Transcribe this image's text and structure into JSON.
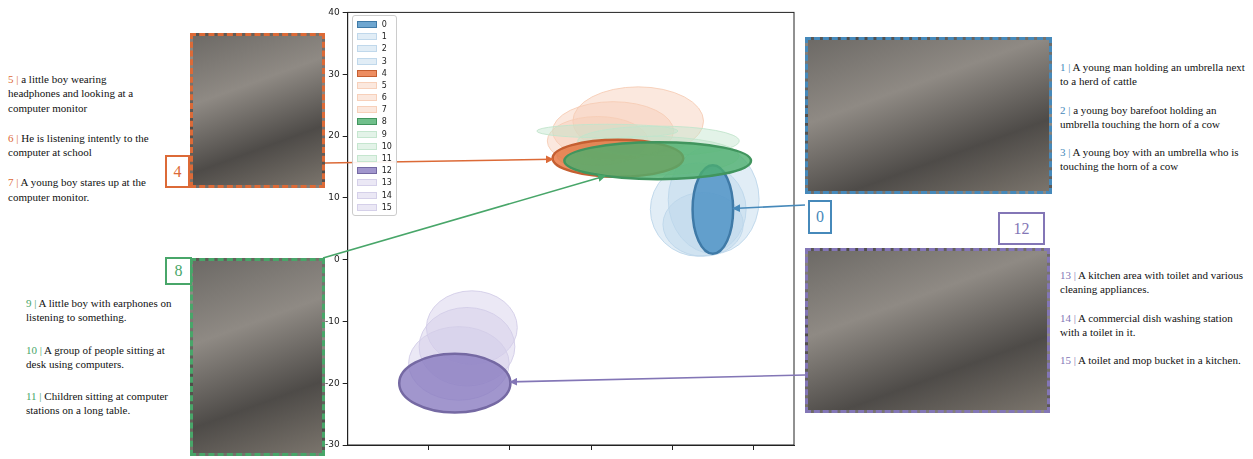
{
  "chart_data": {
    "type": "ellipse",
    "xlim": [
      -30,
      25
    ],
    "xticks": [
      -20,
      -10,
      0,
      10,
      20
    ],
    "ylim": [
      -30,
      40
    ],
    "yticks": [
      -30,
      -20,
      -10,
      0,
      10,
      20,
      30,
      40
    ],
    "tick_labels": "y",
    "grid": false,
    "legend": "upper left",
    "series": [
      {
        "name": "0",
        "color": "#4a90c4",
        "center": [
          15.0,
          8.1
        ],
        "width": 5.0,
        "height": 14.3
      },
      {
        "name": "1",
        "color": "#bcd6ea",
        "center": [
          13.2,
          8.1
        ],
        "width": 11.8,
        "height": 15.1
      },
      {
        "name": "2",
        "color": "#bcd6ea",
        "center": [
          15.1,
          9.7
        ],
        "width": 11.2,
        "height": 17.5
      },
      {
        "name": "3",
        "color": "#bcd6ea",
        "center": [
          13.8,
          5.7
        ],
        "width": 9.9,
        "height": 10.3
      },
      {
        "name": "4",
        "color": "#e8703a",
        "center": [
          3.3,
          16.4
        ],
        "width": 16.1,
        "height": 6.0
      },
      {
        "name": "5",
        "color": "#f6cdb6",
        "center": [
          2.7,
          20.8
        ],
        "width": 14.9,
        "height": 9.5
      },
      {
        "name": "6",
        "color": "#f6cdb6",
        "center": [
          5.8,
          22.4
        ],
        "width": 16.1,
        "height": 11.1
      },
      {
        "name": "7",
        "color": "#f6cdb6",
        "center": [
          0.8,
          19.2
        ],
        "width": 12.4,
        "height": 7.9
      },
      {
        "name": "8",
        "color": "#4caf6e",
        "center": [
          8.2,
          16.0
        ],
        "width": 23.0,
        "height": 6.0
      },
      {
        "name": "9",
        "color": "#c2e4cc",
        "center": [
          2.0,
          20.8
        ],
        "width": 17.4,
        "height": 2.2
      },
      {
        "name": "10",
        "color": "#c2e4cc",
        "center": [
          8.3,
          19.2
        ],
        "width": 19.9,
        "height": 4.8
      },
      {
        "name": "11",
        "color": "#c2e4cc",
        "center": [
          7.0,
          16.8
        ],
        "width": 22.4,
        "height": 6.3
      },
      {
        "name": "12",
        "color": "#8a7cc0",
        "center": [
          -16.8,
          -20.0
        ],
        "width": 13.7,
        "height": 9.5
      },
      {
        "name": "13",
        "color": "#d3cde8",
        "center": [
          -14.7,
          -11.0
        ],
        "width": 11.2,
        "height": 11.9
      },
      {
        "name": "14",
        "color": "#d3cde8",
        "center": [
          -15.3,
          -14.1
        ],
        "width": 11.8,
        "height": 12.7
      },
      {
        "name": "15",
        "color": "#d3cde8",
        "center": [
          -16.3,
          -16.8
        ],
        "width": 12.4,
        "height": 11.9
      }
    ]
  },
  "caption_separator": "|",
  "panels": [
    {
      "label": 4,
      "target": "4",
      "captions": [
        {
          "number": 5,
          "text": "a little boy wearing headphones and looking at a computer monitor"
        },
        {
          "number": 6,
          "text": "He is listening intently to the computer at school"
        },
        {
          "number": 7,
          "text": "A young boy stares up at the computer monitor."
        }
      ]
    },
    {
      "label": 8,
      "target": "8",
      "captions": [
        {
          "number": 9,
          "text": "A little boy with earphones on listening to something."
        },
        {
          "number": 10,
          "text": "A group of people sitting at desk using computers."
        },
        {
          "number": 11,
          "text": "Children sitting at computer stations on a long table."
        }
      ]
    },
    {
      "label": 0,
      "target": "0",
      "captions": [
        {
          "number": 1,
          "text": "A young man holding an umbrella next to a herd of cattle"
        },
        {
          "number": 2,
          "text": "a young boy barefoot holding an umbrella touching the horn of a cow"
        },
        {
          "number": 3,
          "text": "A young boy with an umbrella who is touching the horn of a cow"
        }
      ]
    },
    {
      "label": 12,
      "target": "12",
      "captions": [
        {
          "number": 13,
          "text": "A kitchen area with toilet and various cleaning appliances."
        },
        {
          "number": 14,
          "text": "A commercial dish washing station with a toilet in it."
        },
        {
          "number": 15,
          "text": "A toilet and mop bucket in a kitchen."
        }
      ]
    }
  ]
}
